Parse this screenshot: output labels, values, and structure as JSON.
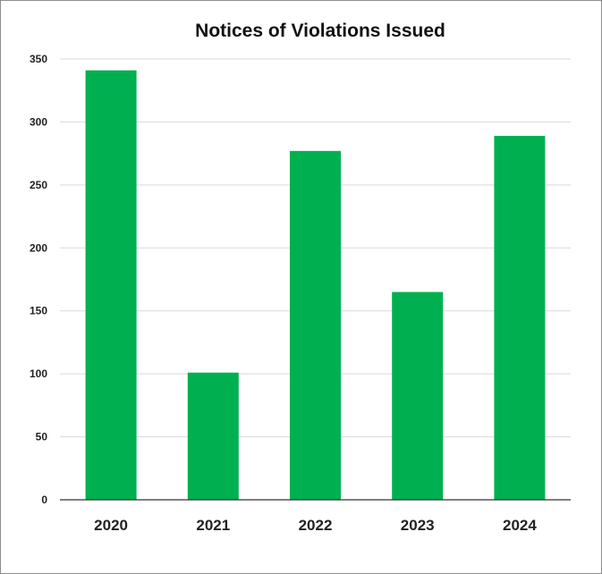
{
  "chart_data": {
    "type": "bar",
    "title": "Notices of Violations Issued",
    "xlabel": "",
    "ylabel": "",
    "categories": [
      "2020",
      "2021",
      "2022",
      "2023",
      "2024"
    ],
    "values": [
      341,
      101,
      277,
      165,
      289
    ],
    "ylim": [
      0,
      350
    ],
    "yticks": [
      0,
      50,
      100,
      150,
      200,
      250,
      300,
      350
    ],
    "grid": true,
    "legend": "none",
    "bar_color": "#00b050"
  }
}
